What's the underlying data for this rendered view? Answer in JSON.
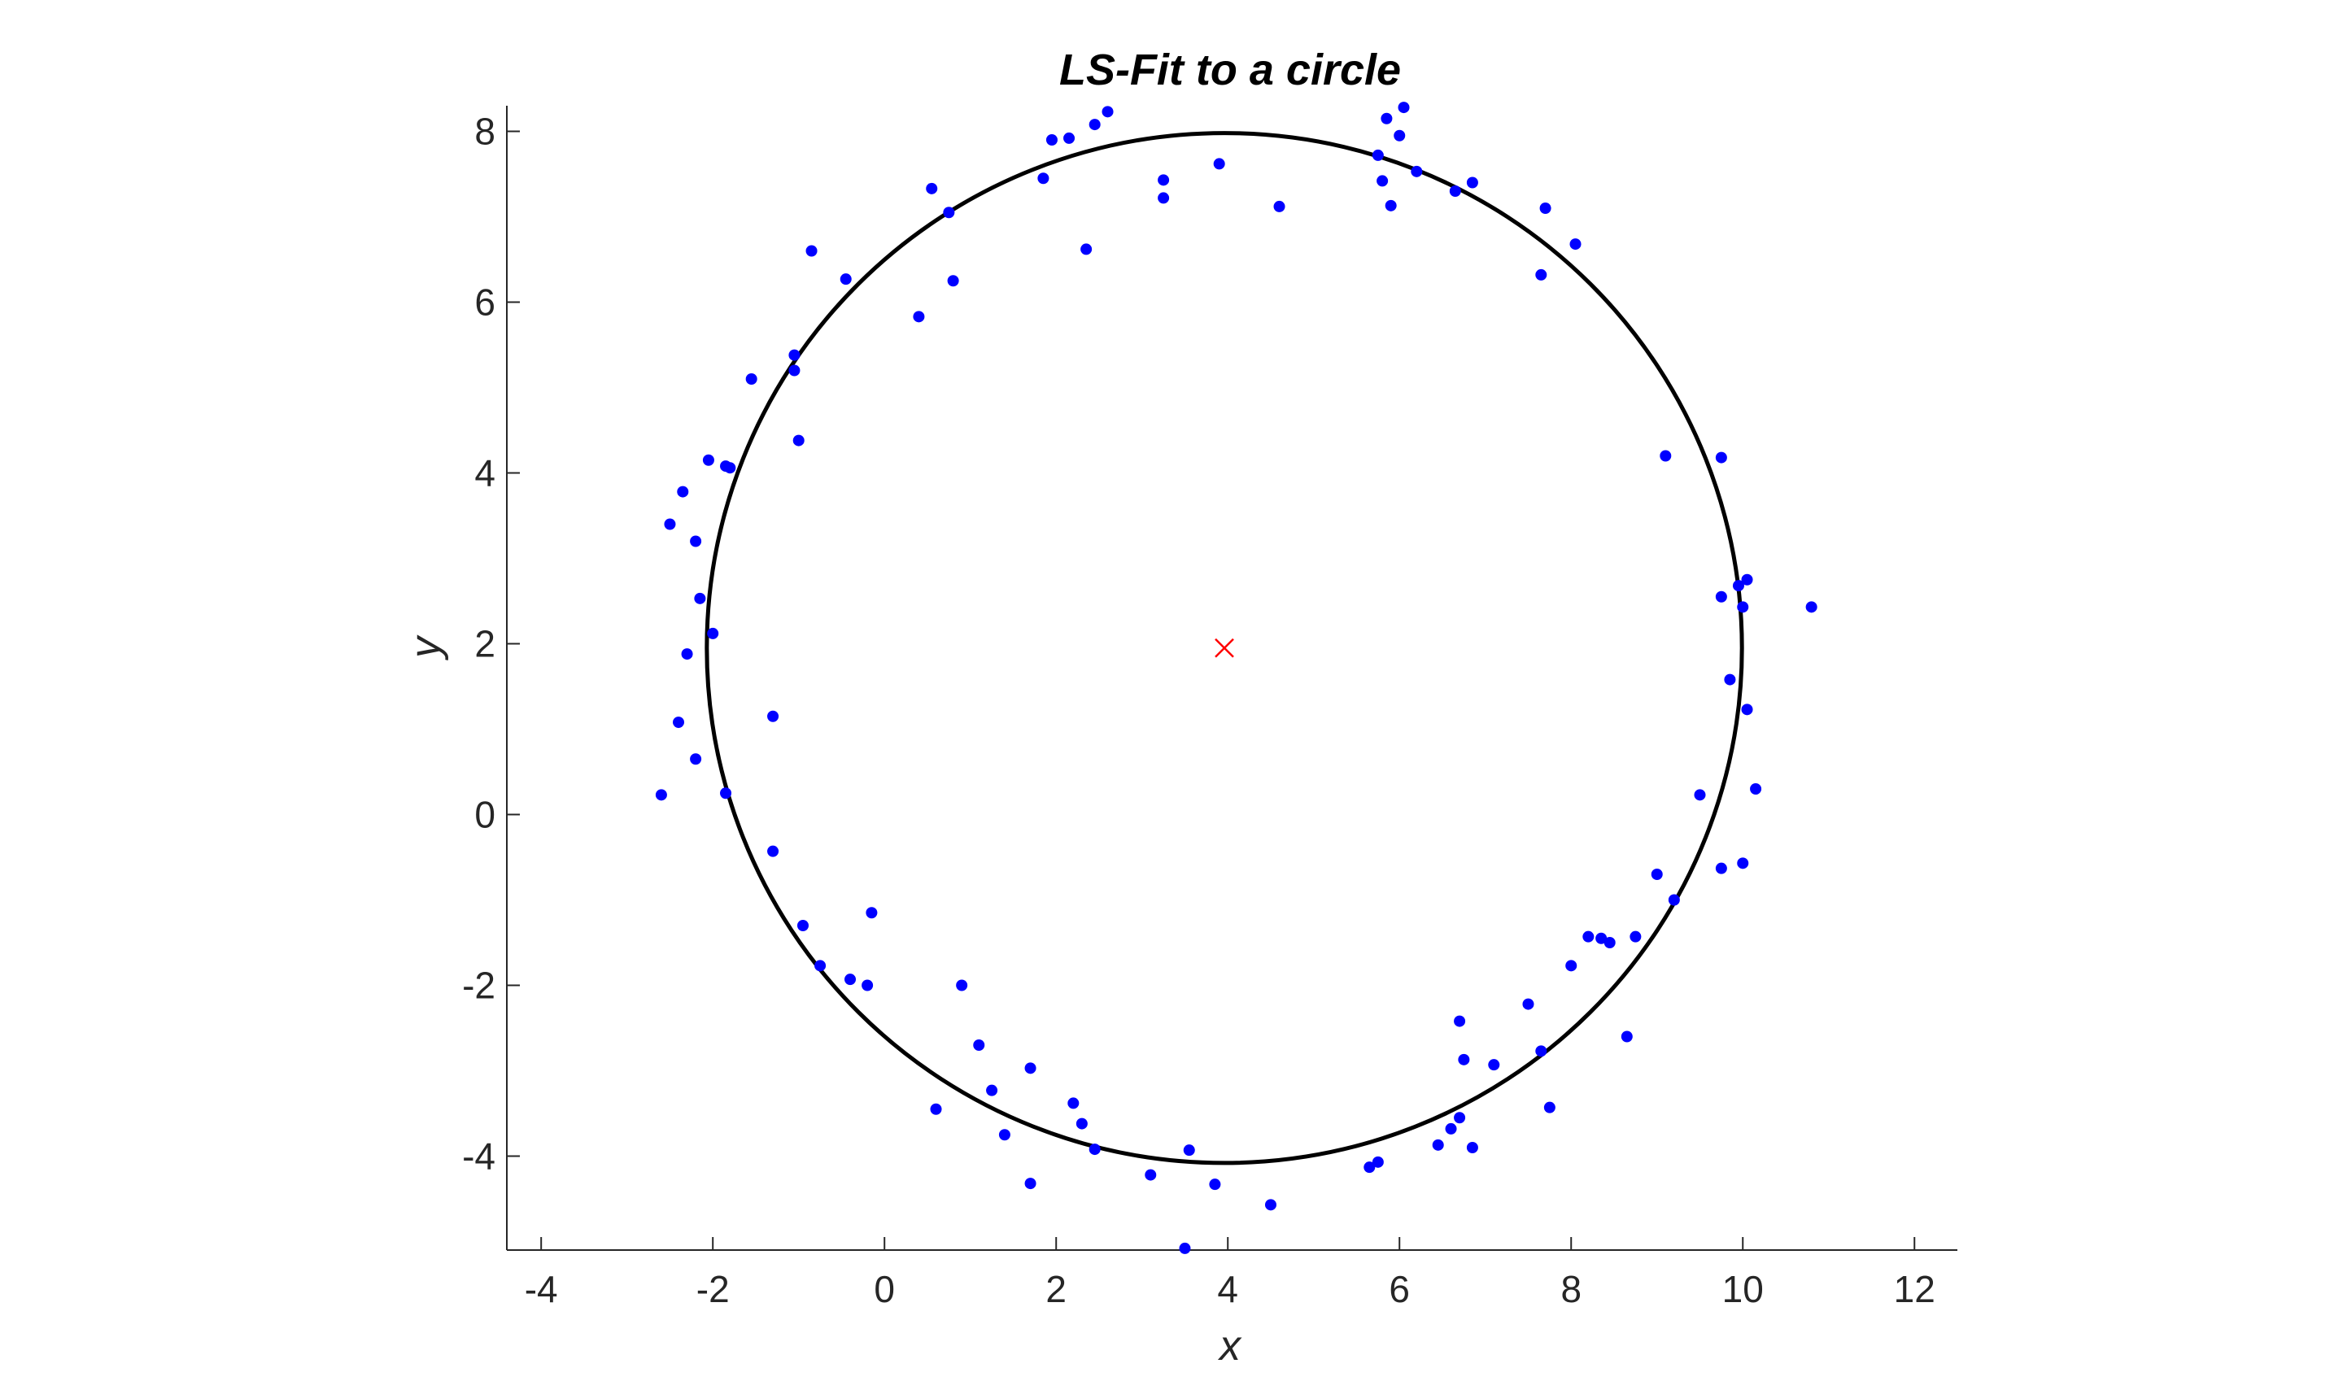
{
  "chart_data": {
    "type": "scatter",
    "title": "LS-Fit to a circle",
    "xlabel": "x",
    "ylabel": "y",
    "xlim": [
      -4.4,
      12.5
    ],
    "ylim": [
      -5.1,
      8.3
    ],
    "xticks": [
      -4,
      -2,
      0,
      2,
      4,
      6,
      8,
      10,
      12
    ],
    "yticks": [
      -4,
      -2,
      0,
      2,
      4,
      6,
      8
    ],
    "xtick_labels": [
      "-4",
      "-2",
      "0",
      "2",
      "4",
      "6",
      "8",
      "10",
      "12"
    ],
    "ytick_labels": [
      "-4",
      "-2",
      "0",
      "2",
      "4",
      "6",
      "8"
    ],
    "grid": false,
    "aspect": "equal",
    "colors": {
      "points": "#0000ff",
      "circle": "#000000",
      "center": "#ff0000"
    },
    "fitted_circle": {
      "center": [
        3.96,
        1.95
      ],
      "radius": 6.03
    },
    "center_marker": {
      "x": 3.96,
      "y": 1.95,
      "marker": "x"
    },
    "points": [
      [
        -2.6,
        0.23
      ],
      [
        -2.5,
        3.4
      ],
      [
        -2.4,
        1.08
      ],
      [
        -2.35,
        3.78
      ],
      [
        -2.3,
        1.88
      ],
      [
        -2.2,
        0.65
      ],
      [
        -2.2,
        3.2
      ],
      [
        -2.15,
        2.53
      ],
      [
        -2.05,
        4.15
      ],
      [
        -2.0,
        2.12
      ],
      [
        -1.85,
        0.25
      ],
      [
        -1.85,
        4.08
      ],
      [
        -1.8,
        4.06
      ],
      [
        -1.55,
        5.1
      ],
      [
        -1.3,
        -0.43
      ],
      [
        -1.3,
        1.15
      ],
      [
        -1.05,
        5.38
      ],
      [
        -1.05,
        5.2
      ],
      [
        -1.0,
        4.38
      ],
      [
        -0.95,
        -1.3
      ],
      [
        -0.85,
        6.6
      ],
      [
        -0.75,
        -1.77
      ],
      [
        -0.45,
        6.27
      ],
      [
        -0.4,
        -1.93
      ],
      [
        -0.2,
        -2.0
      ],
      [
        -0.15,
        -1.15
      ],
      [
        0.4,
        5.83
      ],
      [
        0.55,
        7.33
      ],
      [
        0.6,
        -3.45
      ],
      [
        0.75,
        7.05
      ],
      [
        0.8,
        6.25
      ],
      [
        0.9,
        -2.0
      ],
      [
        1.1,
        -2.7
      ],
      [
        1.25,
        -3.23
      ],
      [
        1.4,
        -3.75
      ],
      [
        1.7,
        -2.97
      ],
      [
        1.7,
        -4.32
      ],
      [
        1.85,
        7.45
      ],
      [
        1.95,
        7.9
      ],
      [
        2.15,
        7.92
      ],
      [
        2.2,
        -3.38
      ],
      [
        2.3,
        -3.62
      ],
      [
        2.35,
        6.62
      ],
      [
        2.45,
        -3.92
      ],
      [
        2.45,
        8.08
      ],
      [
        2.6,
        8.23
      ],
      [
        3.1,
        -4.22
      ],
      [
        3.25,
        7.43
      ],
      [
        3.25,
        7.22
      ],
      [
        3.5,
        -5.08
      ],
      [
        3.55,
        -3.93
      ],
      [
        3.85,
        -4.33
      ],
      [
        3.9,
        7.62
      ],
      [
        4.5,
        -4.57
      ],
      [
        4.6,
        7.12
      ],
      [
        5.65,
        -4.13
      ],
      [
        5.75,
        -4.07
      ],
      [
        5.75,
        7.72
      ],
      [
        5.8,
        7.42
      ],
      [
        5.85,
        8.15
      ],
      [
        5.9,
        7.13
      ],
      [
        6.0,
        7.95
      ],
      [
        6.05,
        8.28
      ],
      [
        6.2,
        7.53
      ],
      [
        6.45,
        -3.87
      ],
      [
        6.6,
        -3.68
      ],
      [
        6.65,
        7.3
      ],
      [
        6.7,
        -3.55
      ],
      [
        6.7,
        -2.42
      ],
      [
        6.75,
        -2.87
      ],
      [
        6.85,
        -3.9
      ],
      [
        6.85,
        7.4
      ],
      [
        7.1,
        -2.93
      ],
      [
        7.5,
        -2.22
      ],
      [
        7.65,
        -2.77
      ],
      [
        7.65,
        6.32
      ],
      [
        7.7,
        7.1
      ],
      [
        7.75,
        -3.43
      ],
      [
        8.0,
        -1.77
      ],
      [
        8.05,
        6.68
      ],
      [
        8.2,
        -1.43
      ],
      [
        8.35,
        -1.45
      ],
      [
        8.45,
        -1.5
      ],
      [
        8.65,
        -2.6
      ],
      [
        8.75,
        -1.43
      ],
      [
        9.0,
        -0.7
      ],
      [
        9.1,
        4.2
      ],
      [
        9.2,
        -1.0
      ],
      [
        9.5,
        0.23
      ],
      [
        9.75,
        4.18
      ],
      [
        9.75,
        2.55
      ],
      [
        9.75,
        -0.63
      ],
      [
        9.85,
        1.58
      ],
      [
        9.95,
        2.68
      ],
      [
        10.0,
        2.43
      ],
      [
        10.0,
        -0.57
      ],
      [
        10.05,
        2.75
      ],
      [
        10.05,
        1.23
      ],
      [
        10.15,
        0.3
      ],
      [
        10.8,
        2.43
      ]
    ]
  }
}
